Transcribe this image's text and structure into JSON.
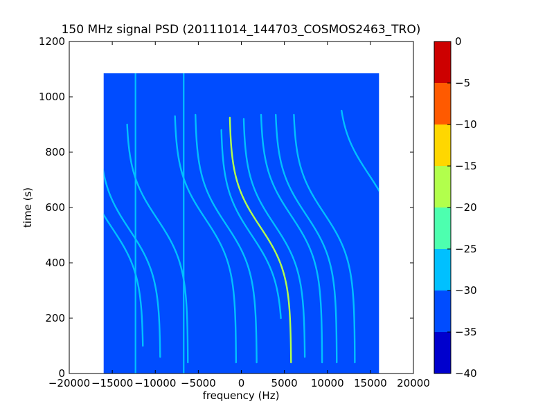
{
  "chart_data": {
    "type": "heatmap",
    "title": "150 MHz signal PSD (20111014_144703_COSMOS2463_TRO)",
    "xlabel": "frequency (Hz)",
    "ylabel": "time (s)",
    "xlim": [
      -20000,
      20000
    ],
    "ylim": [
      0,
      1200
    ],
    "xticks": [
      -20000,
      -15000,
      -10000,
      -5000,
      0,
      5000,
      10000,
      15000,
      20000
    ],
    "xtick_labels": [
      "−20000",
      "−15000",
      "−10000",
      "−5000",
      "0",
      "5000",
      "10000",
      "15000",
      "20000"
    ],
    "yticks": [
      0,
      200,
      400,
      600,
      800,
      1000,
      1200
    ],
    "ytick_labels": [
      "0",
      "200",
      "400",
      "600",
      "800",
      "1000",
      "1200"
    ],
    "data_extent": {
      "freq_min": -16000,
      "freq_max": 16000,
      "time_min": 0,
      "time_max": 1085
    },
    "background_level": -32,
    "colorbar": {
      "levels": [
        -40,
        -35,
        -30,
        -25,
        -20,
        -15,
        -10,
        -5,
        0
      ],
      "tick_labels": [
        "−40",
        "−35",
        "−30",
        "−25",
        "−20",
        "−15",
        "−10",
        "−5",
        "0"
      ],
      "colors": [
        "#0000cd",
        "#004cff",
        "#00c0ff",
        "#4dffaf",
        "#b2ff4c",
        "#ffd700",
        "#ff5a00",
        "#cd0000"
      ],
      "colormap": "jet"
    },
    "vertical_lines": [
      {
        "freq": -12300,
        "time_from": 0,
        "time_to": 1085,
        "level": -27
      },
      {
        "freq": -6700,
        "time_from": 0,
        "time_to": 1085,
        "level": -27
      }
    ],
    "doppler_tracks": [
      {
        "f_center": 2200,
        "t_center": 530,
        "time_from": 40,
        "time_to": 925,
        "level": -20
      },
      {
        "f_center": -1800,
        "t_center": 540,
        "time_from": 40,
        "time_to": 935,
        "level": -26
      },
      {
        "f_center": -4200,
        "t_center": 560,
        "time_from": 40,
        "time_to": 930,
        "level": -27
      },
      {
        "f_center": 5800,
        "t_center": 570,
        "time_from": 40,
        "time_to": 935,
        "level": -26
      },
      {
        "f_center": 7500,
        "t_center": 575,
        "time_from": 40,
        "time_to": 935,
        "level": -27
      },
      {
        "f_center": 9600,
        "t_center": 580,
        "time_from": 40,
        "time_to": 935,
        "level": -28
      },
      {
        "f_center": -13000,
        "t_center": 520,
        "time_from": 60,
        "time_to": 900,
        "level": -28
      },
      {
        "f_center": -15000,
        "t_center": 525,
        "time_from": 100,
        "time_to": 890,
        "level": -27
      },
      {
        "f_center": -9800,
        "t_center": 560,
        "time_from": 40,
        "time_to": 900,
        "level": -28
      },
      {
        "f_center": 14800,
        "t_center": 720,
        "time_from": 560,
        "time_to": 950,
        "level": -27
      },
      {
        "f_center": 3800,
        "t_center": 540,
        "time_from": 60,
        "time_to": 920,
        "level": -29
      },
      {
        "f_center": 1200,
        "t_center": 500,
        "time_from": 200,
        "time_to": 880,
        "level": -29
      }
    ]
  }
}
